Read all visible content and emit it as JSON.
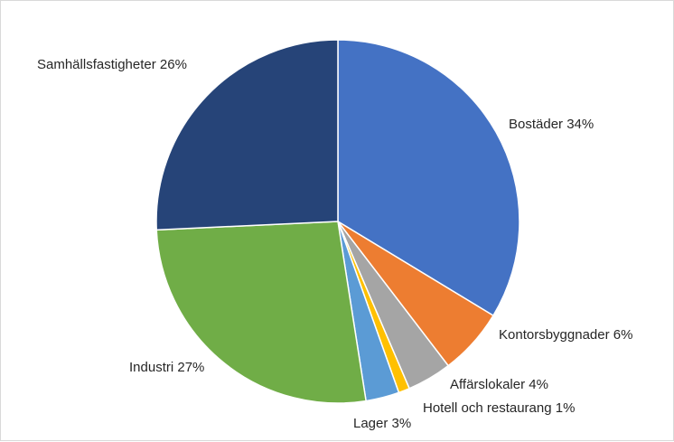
{
  "chart_data": {
    "type": "pie",
    "title": "",
    "start_angle_deg": 0,
    "direction": "clockwise",
    "legend": "none",
    "slices": [
      {
        "label": "Bostäder",
        "value": 34,
        "text": "Bostäder 34%",
        "color": "#4472C4"
      },
      {
        "label": "Kontorsbyggnader",
        "value": 6,
        "text": "Kontorsbyggnader 6%",
        "color": "#ED7D31"
      },
      {
        "label": "Affärslokaler",
        "value": 4,
        "text": "Affärslokaler 4%",
        "color": "#A5A5A5"
      },
      {
        "label": "Hotell och restaurang",
        "value": 1,
        "text": "Hotell och restaurang 1%",
        "color": "#FFC000"
      },
      {
        "label": "Lager",
        "value": 3,
        "text": "Lager 3%",
        "color": "#5B9BD5"
      },
      {
        "label": "Industri",
        "value": 27,
        "text": "Industri 27%",
        "color": "#70AD47"
      },
      {
        "label": "Samhällsfastigheter",
        "value": 26,
        "text": "Samhällsfastigheter 26%",
        "color": "#264478"
      }
    ]
  }
}
